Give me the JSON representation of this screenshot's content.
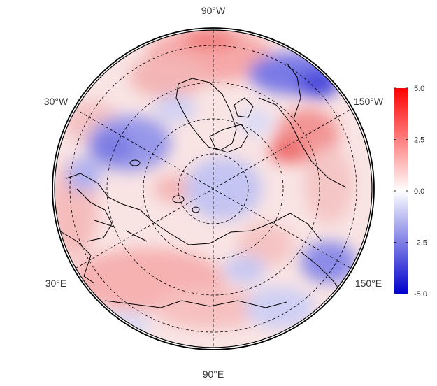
{
  "map": {
    "projection": "north-polar-stereographic",
    "longitude_labels": {
      "top": "90°W",
      "upper_left": "30°W",
      "upper_right": "150°W",
      "lower_left": "30°E",
      "lower_right": "150°E",
      "bottom": "90°E"
    },
    "graticule_style": "dashed",
    "coastline_color": "#000000"
  },
  "colorbar": {
    "ticks": [
      "5.0",
      "2.5",
      "0.0",
      "-2.5",
      "-5.0"
    ],
    "min": -5.0,
    "max": 5.0,
    "colors": {
      "low": "#0000cc",
      "mid": "#ffffff",
      "high": "#ff0000"
    }
  }
}
